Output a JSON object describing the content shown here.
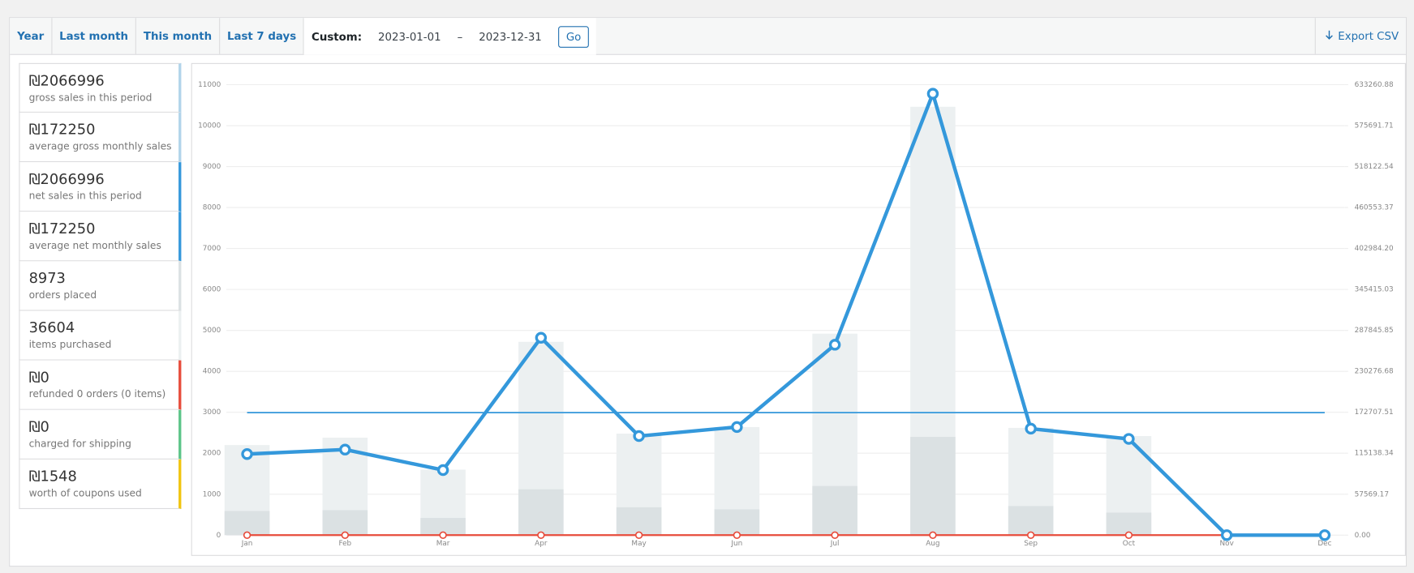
{
  "tabs": [
    "Year",
    "Last month",
    "This month",
    "Last 7 days"
  ],
  "custom": {
    "label": "Custom:",
    "from": "2023-01-01",
    "dash": "–",
    "to": "2023-12-31",
    "button": "Go"
  },
  "export": "Export CSV",
  "legend": [
    {
      "amount": "₪2066996",
      "label": "gross sales in this period",
      "color": "#b1d4ea"
    },
    {
      "amount": "₪172250",
      "label": "average gross monthly sales",
      "color": "#b1d4ea"
    },
    {
      "amount": "₪2066996",
      "label": "net sales in this period",
      "color": "#3498db"
    },
    {
      "amount": "₪172250",
      "label": "average net monthly sales",
      "color": "#3498db"
    },
    {
      "amount": "8973",
      "label": "orders placed",
      "color": "#dbe1e3"
    },
    {
      "amount": "36604",
      "label": "items purchased",
      "color": "#ecf0f1"
    },
    {
      "amount": "₪0",
      "label": "refunded 0 orders (0 items)",
      "color": "#e74c3c"
    },
    {
      "amount": "₪0",
      "label": "charged for shipping",
      "color": "#5cc488"
    },
    {
      "amount": "₪1548",
      "label": "worth of coupons used",
      "color": "#f1c40f"
    }
  ],
  "chart_data": {
    "type": "combo",
    "categories": [
      "Jan",
      "Feb",
      "Mar",
      "Apr",
      "May",
      "Jun",
      "Jul",
      "Aug",
      "Sep",
      "Oct",
      "Nov",
      "Dec"
    ],
    "ylim": [
      0,
      11000
    ],
    "yticks": [
      0,
      1000,
      2000,
      3000,
      4000,
      5000,
      6000,
      7000,
      8000,
      9000,
      10000,
      11000
    ],
    "y2lim": [
      0,
      633260.88
    ],
    "y2ticks": [
      {
        "value": 0,
        "label": "0.00"
      },
      57569.17,
      115138.34,
      172707.51,
      230276.68,
      287845.85,
      345415.03,
      {
        "value": 402984.2,
        "label": "402984.20"
      },
      460553.37,
      518122.54,
      575691.71,
      633260.88
    ],
    "grid": true,
    "series": [
      {
        "kind": "bar",
        "color": "#ecf0f1",
        "values": [
          2200,
          2380,
          1600,
          4720,
          2480,
          2640,
          4920,
          10460,
          2620,
          2420,
          0,
          0
        ]
      },
      {
        "kind": "bar",
        "color": "#dbe1e3",
        "values": [
          590,
          610,
          420,
          1120,
          680,
          630,
          1200,
          2400,
          710,
          550,
          0,
          0
        ]
      },
      {
        "kind": "flat",
        "color": "#3498db",
        "axis": "y2",
        "values": [
          172250,
          172250,
          172250,
          172250,
          172250,
          172250,
          172250,
          172250,
          172250,
          172250,
          172250,
          172250
        ]
      },
      {
        "kind": "line",
        "color": "#e74c3c",
        "axis": "y2",
        "values": [
          0,
          0,
          0,
          0,
          0,
          0,
          0,
          0,
          0,
          0,
          0,
          0
        ]
      },
      {
        "kind": "line",
        "color": "#3498db",
        "axis": "y2",
        "values": [
          114000,
          120300,
          91500,
          277500,
          139300,
          152000,
          267700,
          620600,
          149700,
          135300,
          0,
          0
        ]
      }
    ]
  }
}
